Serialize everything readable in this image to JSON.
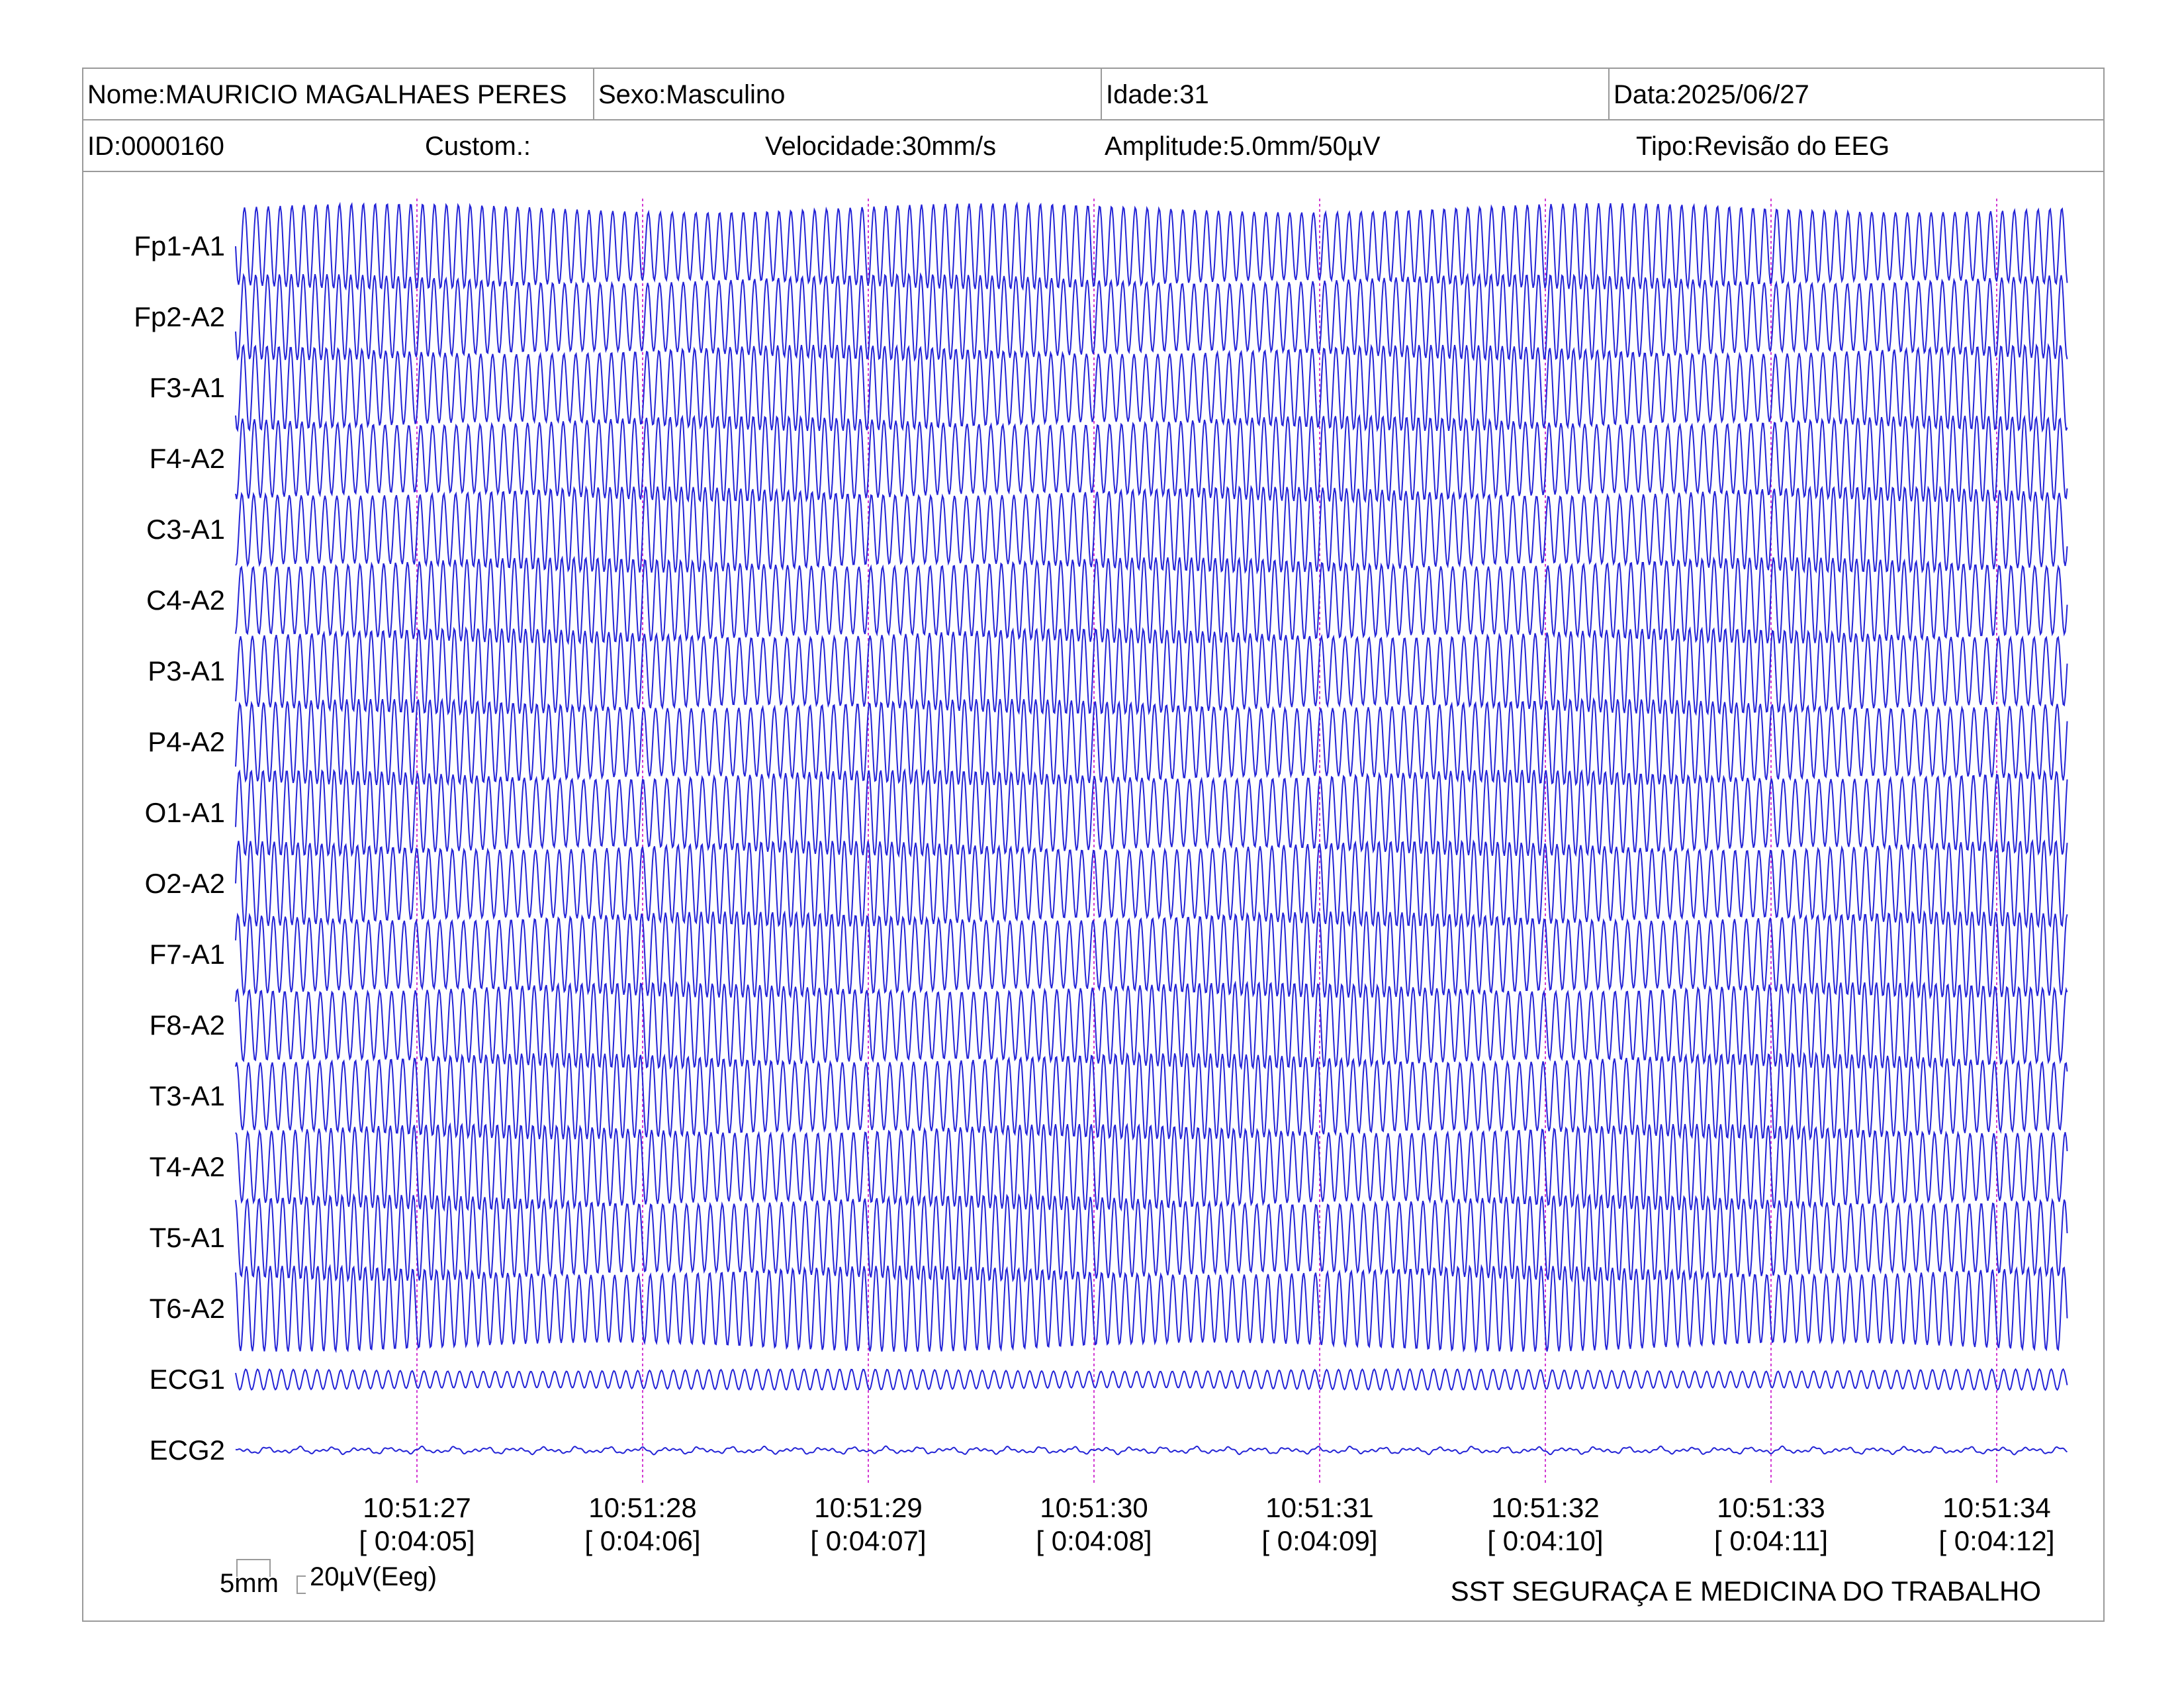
{
  "header": {
    "nome": "Nome:MAURICIO MAGALHAES PERES",
    "sexo": "Sexo:Masculino",
    "idade": "Idade:31",
    "data": "Data:2025/06/27",
    "id": "ID:0000160",
    "custom": "Custom.:",
    "velocidade": "Velocidade:30mm/s",
    "amplitude": "Amplitude:5.0mm/50µV",
    "tipo": "Tipo:Revisão do EEG"
  },
  "colors": {
    "trace": "#2323d6",
    "marker": "#d23ad2",
    "border": "#9a9a9a",
    "text": "#000000"
  },
  "chart_data": {
    "type": "line",
    "channels": [
      "Fp1-A1",
      "Fp2-A2",
      "F3-A1",
      "F4-A2",
      "C3-A1",
      "C4-A2",
      "P3-A1",
      "P4-A2",
      "O1-A1",
      "O2-A2",
      "F7-A1",
      "F8-A2",
      "T3-A1",
      "T4-A2",
      "T5-A1",
      "T6-A2",
      "ECG1",
      "ECG2"
    ],
    "time_ticks": [
      {
        "clock": "10:51:27",
        "elapsed": "[ 0:04:05]"
      },
      {
        "clock": "10:51:28",
        "elapsed": "[ 0:04:06]"
      },
      {
        "clock": "10:51:29",
        "elapsed": "[ 0:04:07]"
      },
      {
        "clock": "10:51:30",
        "elapsed": "[ 0:04:08]"
      },
      {
        "clock": "10:51:31",
        "elapsed": "[ 0:04:09]"
      },
      {
        "clock": "10:51:32",
        "elapsed": "[ 0:04:10]"
      },
      {
        "clock": "10:51:33",
        "elapsed": "[ 0:04:11]"
      },
      {
        "clock": "10:51:34",
        "elapsed": "[ 0:04:12]"
      }
    ],
    "time_range_s": [
      0,
      8.2
    ],
    "eeg_oscillation_hz": 19,
    "ecg1_oscillation_hz": 19,
    "grid": false
  },
  "scale": {
    "time_label": "5mm",
    "amplitude_label": "20µV(Eeg)"
  },
  "footer": {
    "company": "SST SEGURAÇA E MEDICINA DO TRABALHO"
  }
}
